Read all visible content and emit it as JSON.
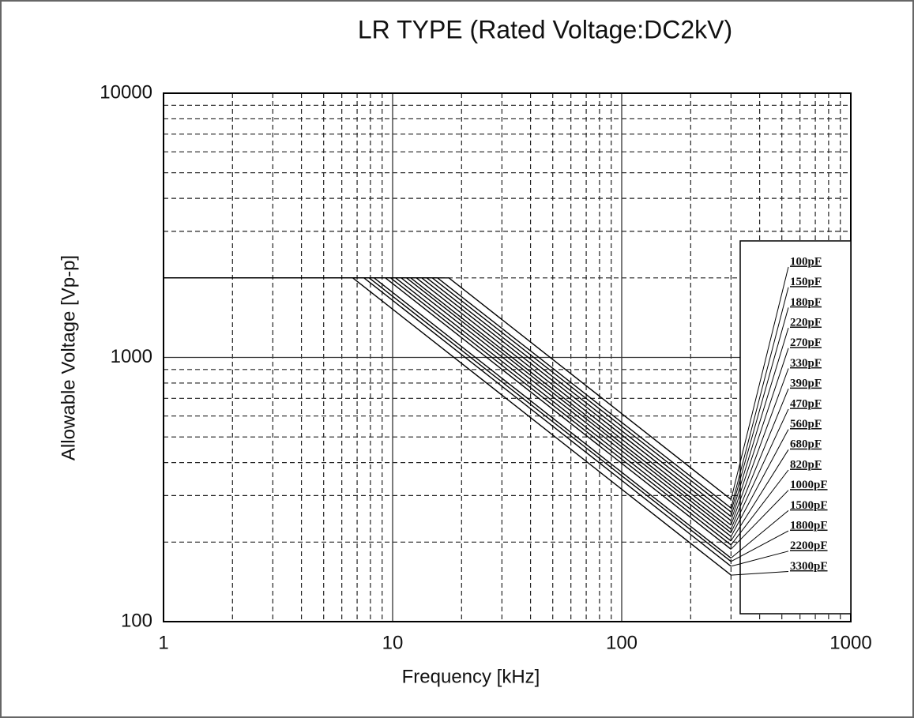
{
  "chart_data": {
    "type": "line",
    "title": "LR TYPE   (Rated Voltage:DC2kV)",
    "x_label": "Frequency [kHz]",
    "y_label": "Allowable Voltage [Vp-p]",
    "xscale": "log",
    "yscale": "log",
    "grid": true,
    "minor_grid": true,
    "legend": "right",
    "xlim": [
      1,
      1000
    ],
    "xticks": [
      1,
      10,
      100,
      1000
    ],
    "ylim": [
      100,
      10000
    ],
    "yticks": [
      100,
      1000,
      10000
    ],
    "series": [
      {
        "name": "100pF",
        "color": "#000000",
        "x": [
          1,
          17.6,
          300
        ],
        "values": [
          2000,
          2000,
          290
        ]
      },
      {
        "name": "150pF",
        "color": "#000000",
        "x": [
          1,
          15.7,
          300
        ],
        "values": [
          2000,
          2000,
          269
        ]
      },
      {
        "name": "180pF",
        "color": "#000000",
        "x": [
          1,
          14.9,
          300
        ],
        "values": [
          2000,
          2000,
          260
        ]
      },
      {
        "name": "220pF",
        "color": "#000000",
        "x": [
          1,
          14.1,
          300
        ],
        "values": [
          2000,
          2000,
          250
        ]
      },
      {
        "name": "270pF",
        "color": "#000000",
        "x": [
          1,
          13.4,
          300
        ],
        "values": [
          2000,
          2000,
          241
        ]
      },
      {
        "name": "330pF",
        "color": "#000000",
        "x": [
          1,
          12.7,
          300
        ],
        "values": [
          2000,
          2000,
          232
        ]
      },
      {
        "name": "390pF",
        "color": "#000000",
        "x": [
          1,
          12.0,
          300
        ],
        "values": [
          2000,
          2000,
          224
        ]
      },
      {
        "name": "470pF",
        "color": "#000000",
        "x": [
          1,
          11.5,
          300
        ],
        "values": [
          2000,
          2000,
          217
        ]
      },
      {
        "name": "560pF",
        "color": "#000000",
        "x": [
          1,
          10.9,
          300
        ],
        "values": [
          2000,
          2000,
          210
        ]
      },
      {
        "name": "680pF",
        "color": "#000000",
        "x": [
          1,
          10.3,
          300
        ],
        "values": [
          2000,
          2000,
          202
        ]
      },
      {
        "name": "820pF",
        "color": "#000000",
        "x": [
          1,
          9.8,
          300
        ],
        "values": [
          2000,
          2000,
          195
        ]
      },
      {
        "name": "1000pF",
        "color": "#000000",
        "x": [
          1,
          9.3,
          300
        ],
        "values": [
          2000,
          2000,
          188
        ]
      },
      {
        "name": "1500pF",
        "color": "#000000",
        "x": [
          1,
          8.3,
          300
        ],
        "values": [
          2000,
          2000,
          174
        ]
      },
      {
        "name": "1800pF",
        "color": "#000000",
        "x": [
          1,
          7.9,
          300
        ],
        "values": [
          2000,
          2000,
          169
        ]
      },
      {
        "name": "2200pF",
        "color": "#000000",
        "x": [
          1,
          7.5,
          300
        ],
        "values": [
          2000,
          2000,
          162
        ]
      },
      {
        "name": "3300pF",
        "color": "#000000",
        "x": [
          1,
          6.7,
          300
        ],
        "values": [
          2000,
          2000,
          150
        ]
      }
    ]
  }
}
